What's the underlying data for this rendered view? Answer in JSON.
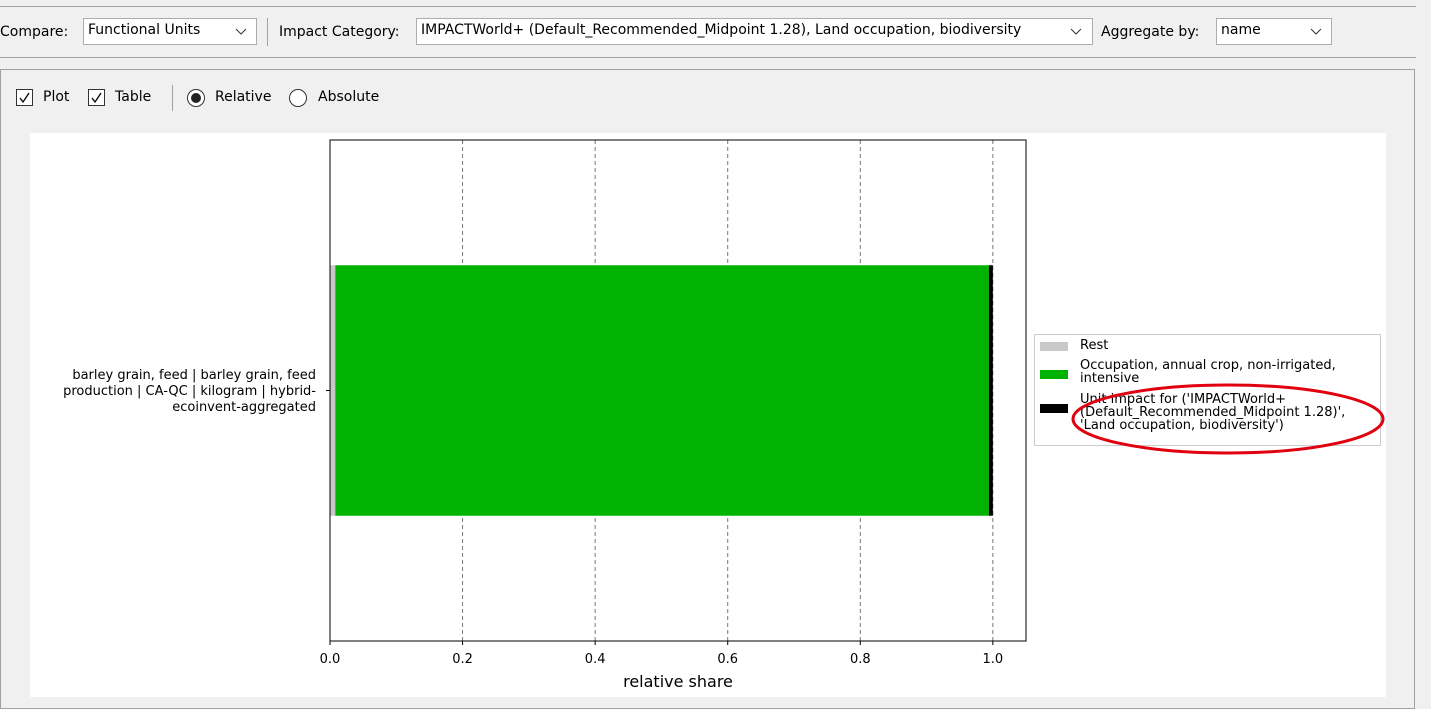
{
  "toolbar": {
    "compare_label": "Compare:",
    "compare_value": "Functional Units",
    "impact_label": "Impact Category:",
    "impact_value": "IMPACTWorld+ (Default_Recommended_Midpoint 1.28), Land occupation, biodiversity",
    "aggregate_label": "Aggregate by:",
    "aggregate_value": "name"
  },
  "options": {
    "plot": "Plot",
    "table": "Table",
    "relative": "Relative",
    "absolute": "Absolute"
  },
  "chart_data": {
    "type": "bar",
    "orientation": "horizontal",
    "stacked": true,
    "categories": [
      "barley grain, feed | barley grain, feed production | CA-QC | kilogram | hybrid-ecoinvent-aggregated"
    ],
    "series": [
      {
        "name": "Rest",
        "color": "#c8c8c8",
        "values": [
          0.008
        ]
      },
      {
        "name": "Occupation, annual crop, non-irrigated, intensive",
        "color": "#00b300",
        "values": [
          0.986
        ]
      },
      {
        "name": "Unit impact for ('IMPACTWorld+ (Default_Recommended_Midpoint 1.28)', 'Land occupation, biodiversity')",
        "color": "#000000",
        "values": [
          0.006
        ]
      }
    ],
    "xlabel": "relative share",
    "xlim": [
      0,
      1.05
    ],
    "xticks": [
      {
        "value": 0,
        "label": "0.0"
      },
      0.2,
      0.4,
      0.6,
      0.8,
      {
        "value": 1,
        "label": "1.0"
      }
    ],
    "grid": true,
    "legend": "right"
  }
}
